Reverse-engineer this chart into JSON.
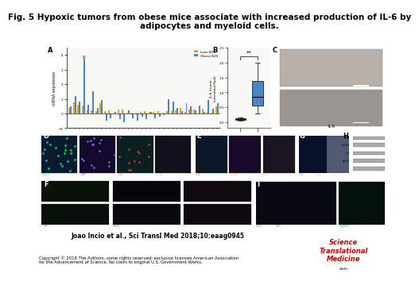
{
  "title": "Fig. 5 Hypoxic tumors from obese mice associate with increased production of IL-6 by\nadipocytes and myeloid cells.",
  "title_fontsize": 7.5,
  "title_fontweight": "bold",
  "citation": "Joao Incio et al., Sci Transl Med 2018;10:eaag0945",
  "copyright": "Copyright © 2018 The Authors, some rights reserved; exclusive licensee American Association\nfor the Advancement of Science. No claim to original U.S. Government Works.",
  "journal_name": "Science\nTranslational\nMedicine",
  "bg_color": "#ffffff",
  "panel_A_bg": "#f8f8f5",
  "dark_panel_bg": "#0d0d1a",
  "citation_fontsize": 5.5,
  "copyright_fontsize": 3.8,
  "journal_fontsize": 6.0,
  "journal_color": "#cc0000",
  "label_fontsize": 6,
  "bar_lean_color": "#e8a020",
  "bar_obese_color": "#4a85c8",
  "panel_label_fontsize": 5
}
